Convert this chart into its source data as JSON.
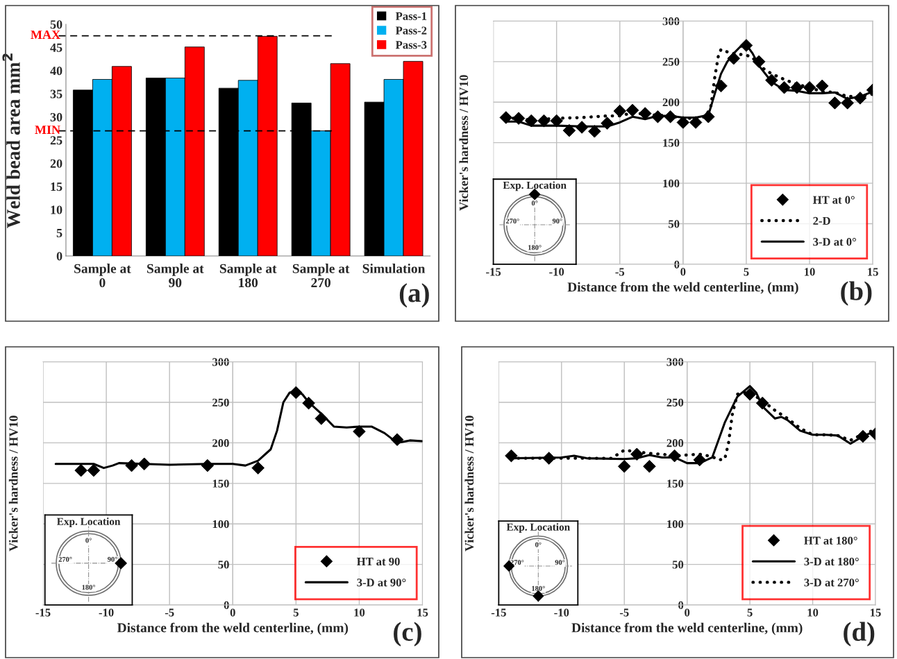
{
  "chart_data": [
    {
      "type": "bar",
      "ylabel": "Weld bead area mm$^{2}$",
      "categories": [
        "Sample at\n0",
        "Sample at\n90",
        "Sample at\n180",
        "Sample at\n270",
        "Simulation"
      ],
      "series": [
        {
          "name": "Pass-1",
          "color": "#000000",
          "values": [
            35.8,
            38.4,
            36.2,
            33.0,
            33.2
          ]
        },
        {
          "name": "Pass-2",
          "color": "#00b0f0",
          "values": [
            38.1,
            38.4,
            37.9,
            27.0,
            38.1
          ]
        },
        {
          "name": "Pass-3",
          "color": "#ff0000",
          "values": [
            40.9,
            45.1,
            47.4,
            41.5,
            42.0
          ]
        }
      ],
      "ylim": [
        0,
        50
      ],
      "yticks": [
        0,
        5,
        10,
        15,
        20,
        25,
        30,
        35,
        40,
        45,
        50
      ],
      "grid": false,
      "legend": "top right",
      "ref_lines": [
        {
          "axis": "y",
          "value": 47.5,
          "label": "MAX",
          "color": "#000000",
          "line_style": "dashed"
        },
        {
          "axis": "y",
          "value": 27.0,
          "label": "MIN",
          "color": "#000000",
          "line_style": "dashed"
        }
      ],
      "annotations": [
        "(a)"
      ]
    },
    {
      "type": "line",
      "xlabel": "Distance from the weld centerline, (mm)",
      "ylabel": "Vicker's hardness / HV10",
      "series": [
        {
          "name": "HT at 0°",
          "type": "scatter",
          "marker": "diamond",
          "color": "#000000",
          "x": [
            -14,
            -13,
            -12,
            -11,
            -10,
            -9,
            -8,
            -7,
            -6,
            -5,
            -4,
            -3,
            -2,
            -1,
            0,
            1,
            2,
            3,
            4,
            5,
            6,
            7,
            8,
            9,
            10,
            11,
            12,
            13,
            14,
            15
          ],
          "values": [
            181,
            180,
            177,
            177,
            177,
            165,
            169,
            164,
            174,
            189,
            190,
            186,
            182,
            182,
            175,
            175,
            182,
            220,
            254,
            270,
            250,
            227,
            218,
            218,
            218,
            220,
            199,
            199,
            205,
            215
          ]
        },
        {
          "name": "2-D",
          "type": "line",
          "line_style": "dotted",
          "color": "#000000",
          "x": [
            -14,
            -12,
            -10,
            -8,
            -6,
            -5,
            -4,
            -3,
            -2,
            -1,
            0,
            1,
            1.8,
            2.2,
            2.5,
            2.8,
            3.0,
            3.5,
            4,
            5,
            5.5,
            6,
            7,
            8,
            9,
            10,
            11,
            12,
            13,
            14,
            15
          ],
          "values": [
            181,
            178,
            180,
            181,
            183,
            183,
            187,
            185,
            184,
            183,
            180,
            180,
            182,
            195,
            230,
            258,
            265,
            262,
            260,
            258,
            255,
            245,
            235,
            228,
            222,
            218,
            213,
            212,
            207,
            207,
            210
          ]
        },
        {
          "name": "3-D at 0°",
          "type": "line",
          "line_style": "solid",
          "color": "#000000",
          "x": [
            -14,
            -13,
            -12,
            -11,
            -10,
            -8,
            -6,
            -5,
            -4,
            -3,
            -2,
            -1,
            0,
            1,
            2,
            2.5,
            3,
            3.5,
            4,
            4.5,
            5,
            5.5,
            6,
            7,
            8,
            9,
            10,
            11,
            12,
            13,
            14,
            15
          ],
          "values": [
            176,
            176,
            171,
            171,
            171,
            170,
            170,
            175,
            182,
            179,
            183,
            183,
            181,
            181,
            184,
            210,
            235,
            250,
            260,
            268,
            271,
            260,
            245,
            225,
            215,
            214,
            211,
            211,
            212,
            204,
            207,
            213
          ]
        }
      ],
      "xlim": [
        -15,
        15
      ],
      "xticks": [
        -15,
        -10,
        -5,
        0,
        5,
        10,
        15
      ],
      "ylim": [
        0,
        300
      ],
      "yticks": [
        0,
        50,
        100,
        150,
        200,
        250,
        300
      ],
      "grid": true,
      "legend": "bottom right",
      "annotations": [
        "(b)",
        "Exp. Location",
        "0°",
        "90°",
        "180°",
        "270°"
      ]
    },
    {
      "type": "line",
      "xlabel": "Distance from the weld centerline, (mm)",
      "ylabel": "Vicker's hardness / HV10",
      "series": [
        {
          "name": "HT at 90",
          "type": "scatter",
          "marker": "diamond",
          "color": "#000000",
          "x": [
            -12,
            -11,
            -8,
            -7,
            -2,
            2,
            5,
            6,
            7,
            10,
            13
          ],
          "values": [
            166,
            166,
            172,
            174,
            172,
            169,
            262,
            249,
            230,
            214,
            204
          ]
        },
        {
          "name": "3-D at 90°",
          "type": "line",
          "line_style": "solid",
          "color": "#000000",
          "x": [
            -14,
            -11,
            -10.2,
            -9.5,
            -9,
            -7,
            -5,
            -2,
            0,
            1,
            2,
            3,
            3.5,
            4,
            4.5,
            5,
            5.5,
            6,
            7,
            8,
            9,
            10,
            11,
            12,
            13,
            14,
            15
          ],
          "values": [
            174,
            174,
            169,
            172,
            175,
            174,
            173,
            174,
            174,
            172,
            178,
            192,
            215,
            250,
            262,
            264,
            260,
            250,
            236,
            220,
            219,
            220,
            220,
            212,
            200,
            203,
            202
          ]
        }
      ],
      "xlim": [
        -15,
        15
      ],
      "xticks": [
        -15,
        -10,
        -5,
        0,
        5,
        10,
        15
      ],
      "ylim": [
        0,
        300
      ],
      "yticks": [
        0,
        50,
        100,
        150,
        200,
        250,
        300
      ],
      "grid": true,
      "legend": "bottom right",
      "annotations": [
        "(c)",
        "Exp. Location",
        "0°",
        "90°",
        "180°",
        "270°"
      ]
    },
    {
      "type": "line",
      "xlabel": "Distance from the weld centerline, (mm)",
      "ylabel": "Vicker's hardness / HV10",
      "series": [
        {
          "name": "HT at 180°",
          "type": "scatter",
          "marker": "diamond",
          "color": "#000000",
          "x": [
            -14,
            -11,
            -5,
            -4,
            -3,
            -1,
            1,
            5,
            6,
            14,
            15
          ],
          "values": [
            184,
            181,
            171,
            186,
            171,
            184,
            179,
            260,
            249,
            208,
            211
          ]
        },
        {
          "name": "3-D at 180°",
          "type": "line",
          "line_style": "solid",
          "color": "#000000",
          "x": [
            -14,
            -10,
            -9,
            -8,
            -5,
            -4,
            -3,
            -2,
            -1,
            0,
            1,
            2,
            3,
            4,
            5,
            5.5,
            6,
            7,
            7.5,
            8,
            9,
            10,
            11,
            12,
            13,
            14,
            15
          ],
          "values": [
            181,
            182,
            184,
            181,
            180,
            181,
            185,
            182,
            182,
            175,
            175,
            182,
            225,
            257,
            270,
            262,
            245,
            230,
            232,
            228,
            215,
            210,
            210,
            209,
            199,
            208,
            215
          ]
        },
        {
          "name": "3-D at 270°",
          "type": "line",
          "line_style": "dotted",
          "color": "#000000",
          "x": [
            -14,
            -10,
            -8,
            -6,
            -5.5,
            -5,
            -4,
            -3,
            -2,
            -1,
            0,
            1,
            2,
            2.5,
            3,
            3.3,
            3.6,
            4,
            4.5,
            5,
            6,
            7,
            8,
            9,
            10,
            11,
            12,
            13,
            14,
            15
          ],
          "values": [
            181,
            181,
            181,
            181,
            186,
            191,
            189,
            187,
            186,
            184,
            185,
            186,
            183,
            179,
            180,
            200,
            235,
            260,
            262,
            262,
            252,
            240,
            230,
            218,
            210,
            210,
            209,
            203,
            211,
            216
          ]
        }
      ],
      "xlim": [
        -15,
        15
      ],
      "xticks": [
        -15,
        -10,
        -5,
        0,
        5,
        10,
        15
      ],
      "ylim": [
        0,
        300
      ],
      "yticks": [
        0,
        50,
        100,
        150,
        200,
        250,
        300
      ],
      "grid": true,
      "legend": "bottom right",
      "annotations": [
        "(d)",
        "Exp. Location",
        "0°",
        "90°",
        "180°",
        "270°"
      ]
    }
  ]
}
